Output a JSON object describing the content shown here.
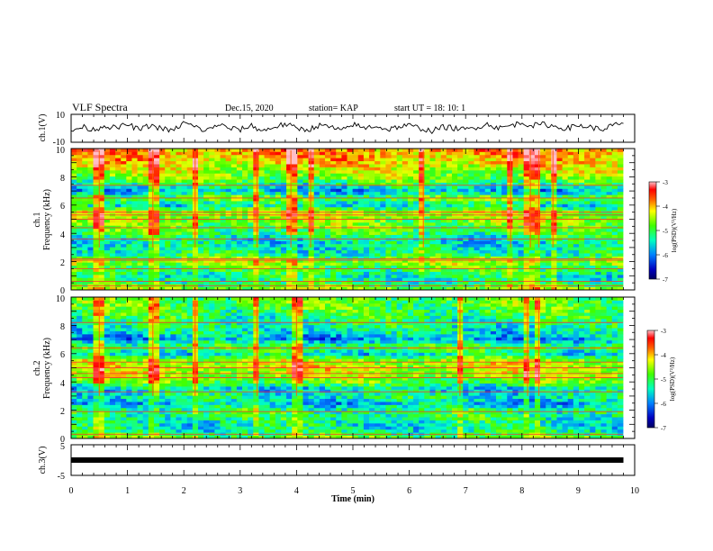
{
  "header": {
    "title": "VLF Spectra",
    "date": "Dec.15, 2020",
    "station": "station= KAP",
    "start": "start  UT =   18: 10: 1"
  },
  "chart_data": [
    {
      "type": "line",
      "panel": "ch1-waveform",
      "ylabel": "ch.1(V)",
      "ylim": [
        -10,
        10
      ],
      "yticks": [
        "10",
        "-10"
      ],
      "series": [
        {
          "x": [
            0,
            0.2,
            0.4,
            0.6,
            0.8,
            1.0,
            1.2,
            1.4,
            1.6,
            1.8,
            2.0,
            2.2,
            2.4,
            2.6,
            2.8,
            3.0,
            3.2,
            3.4,
            3.6,
            3.8,
            4.0,
            4.2,
            4.4,
            4.6,
            4.8,
            5.0,
            5.2,
            5.4,
            5.6,
            5.8,
            6.0,
            6.2,
            6.4,
            6.6,
            6.8,
            7.0,
            7.2,
            7.4,
            7.6,
            7.8,
            8.0,
            8.2,
            8.4,
            8.6,
            8.8,
            9.0,
            9.2,
            9.4,
            9.6,
            9.8
          ],
          "values": [
            -2,
            1,
            -1,
            2,
            0,
            3,
            -1,
            2,
            0,
            -2,
            4,
            1,
            -2,
            3,
            0,
            -1,
            2,
            -2,
            1,
            3,
            0,
            -1,
            2,
            1,
            -2,
            3,
            0,
            2,
            -1,
            1,
            2,
            0,
            -2,
            1,
            0,
            -1,
            1,
            3,
            0,
            2,
            4,
            2,
            3,
            1,
            0,
            2,
            1,
            -1,
            2,
            3
          ]
        }
      ]
    },
    {
      "type": "heatmap",
      "panel": "ch1-spectrogram",
      "ylabel": "ch.1\nFrequency  (kHz)",
      "xlim": [
        0,
        10
      ],
      "ylim": [
        0,
        10
      ],
      "yticks": [
        "0",
        "2",
        "4",
        "6",
        "8",
        "10"
      ],
      "colorbar": {
        "label": "log(PSD)(V²/Hz)",
        "range": [
          -7,
          -3
        ],
        "ticks": [
          "-3",
          "-4",
          "-5",
          "-6",
          "-7"
        ]
      },
      "profile_khz": [
        0,
        0.5,
        1,
        1.5,
        2,
        2.5,
        3,
        3.5,
        4,
        4.5,
        5,
        5.5,
        6,
        6.5,
        7,
        7.5,
        8,
        8.5,
        9,
        9.5,
        10
      ],
      "profile_log_psd": [
        -4.6,
        -5.3,
        -5.4,
        -5.1,
        -4.6,
        -5.3,
        -5.5,
        -5.6,
        -5.2,
        -4.9,
        -4.8,
        -4.6,
        -5.6,
        -4.8,
        -5.9,
        -5.3,
        -4.8,
        -4.6,
        -4.3,
        -4.1,
        -4.0
      ],
      "bands_khz": [
        0.3,
        0.6,
        1.5,
        2.1,
        2.2,
        3.6,
        4.4,
        5.0,
        5.3,
        5.5,
        6.5,
        7.4
      ],
      "bursts_min": [
        0.5,
        1.45,
        2.2,
        3.3,
        3.9,
        4.25,
        6.25,
        7.8,
        8.15,
        8.3,
        8.55
      ]
    },
    {
      "type": "heatmap",
      "panel": "ch2-spectrogram",
      "ylabel": "ch.2\nFrequency  (kHz)",
      "xlim": [
        0,
        10
      ],
      "ylim": [
        0,
        10
      ],
      "yticks": [
        "0",
        "2",
        "4",
        "6",
        "8",
        "10"
      ],
      "colorbar": {
        "label": "log(PSD)(V²/Hz)",
        "range": [
          -7,
          -3
        ],
        "ticks": [
          "-3",
          "-4",
          "-5",
          "-6",
          "-7"
        ]
      },
      "profile_khz": [
        0,
        0.5,
        1,
        1.5,
        2,
        2.5,
        3,
        3.5,
        4,
        4.5,
        5,
        5.5,
        6,
        6.5,
        7,
        7.5,
        8,
        8.5,
        9,
        9.5,
        10
      ],
      "profile_log_psd": [
        -4.8,
        -5.4,
        -5.5,
        -5.3,
        -5.2,
        -5.8,
        -5.4,
        -5.7,
        -5.0,
        -4.6,
        -4.5,
        -4.6,
        -5.6,
        -5.0,
        -5.9,
        -5.6,
        -5.4,
        -5.3,
        -5.1,
        -5.0,
        -4.9
      ],
      "bands_khz": [
        0.3,
        1.9,
        3.3,
        4.3,
        4.6,
        5.0,
        5.4,
        6.4,
        8.2
      ],
      "bursts_min": [
        0.5,
        1.45,
        2.2,
        3.3,
        4.0,
        6.9,
        8.1,
        8.3
      ]
    },
    {
      "type": "line",
      "panel": "ch3-waveform",
      "ylabel": "ch.3(V)",
      "ylim": [
        -5,
        5
      ],
      "yticks": [
        "5",
        "-5"
      ],
      "series": [
        {
          "x": [
            0,
            9.8
          ],
          "values": [
            0,
            0
          ]
        }
      ]
    }
  ],
  "x_axis": {
    "label": "Time  (min)",
    "ticks": [
      "0",
      "1",
      "2",
      "3",
      "4",
      "5",
      "6",
      "7",
      "8",
      "9",
      "10"
    ]
  },
  "colors": {
    "colormap": [
      "#0000a0",
      "#0040ff",
      "#00c0ff",
      "#00ff80",
      "#40ff00",
      "#c0ff00",
      "#ffff00",
      "#ff8000",
      "#ff0000",
      "#ff80a0",
      "#ffffff"
    ]
  }
}
